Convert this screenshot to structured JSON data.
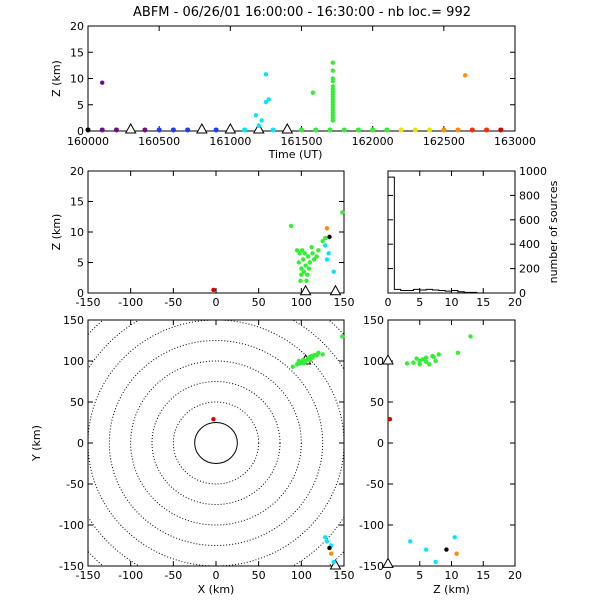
{
  "title": "ABFM - 06/26/01 16:00:00 - 16:30:00 - nb loc.=     992",
  "colors": {
    "black": "#000000",
    "purple": "#6a0f8c",
    "blue": "#1e3cff",
    "cyan": "#00e6ff",
    "green": "#33ee33",
    "yellow": "#e6e600",
    "orange": "#ff8c00",
    "red": "#ff2a00",
    "darkred": "#d40000"
  },
  "chart_data": [
    {
      "id": "time",
      "type": "scatter",
      "xlabel": "Time (UT)",
      "ylabel": "Z (km)",
      "xlim": [
        160000,
        163000
      ],
      "ylim": [
        0,
        20
      ],
      "xticks": [
        160000,
        160500,
        161000,
        161500,
        162000,
        162500,
        163000
      ],
      "yticks": [
        0,
        5,
        10,
        15,
        20
      ],
      "baseline_markers": {
        "t": [
          160000,
          160100,
          160200,
          160300,
          160400,
          160500,
          160600,
          160700,
          160800,
          160900,
          161000,
          161100,
          161200,
          161300,
          161400,
          161500,
          161600,
          161700,
          161800,
          161900,
          162000,
          162100,
          162200,
          162300,
          162400,
          162500,
          162600,
          162700,
          162800,
          162900
        ],
        "colors": [
          "black",
          "purple",
          "purple",
          "purple",
          "purple",
          "blue",
          "blue",
          "blue",
          "blue",
          "blue",
          "cyan",
          "cyan",
          "cyan",
          "cyan",
          "cyan",
          "green",
          "green",
          "green",
          "green",
          "green",
          "green",
          "green",
          "yellow",
          "yellow",
          "yellow",
          "orange",
          "orange",
          "red",
          "red",
          "darkred"
        ]
      },
      "stations": [
        160300,
        160800,
        161000,
        161200,
        161400
      ],
      "series": [
        {
          "color": "purple",
          "points": [
            [
              160100,
              9.2
            ]
          ]
        },
        {
          "color": "cyan",
          "points": [
            [
              161250,
              10.8
            ],
            [
              161270,
              6
            ],
            [
              161250,
              5.5
            ],
            [
              161220,
              2
            ],
            [
              161200,
              1
            ],
            [
              161180,
              3
            ]
          ]
        },
        {
          "color": "green",
          "points": [
            [
              161580,
              7.3
            ],
            [
              161720,
              13
            ],
            [
              161720,
              11.5
            ],
            [
              161720,
              10
            ],
            [
              161720,
              9.5
            ],
            [
              161720,
              8.5
            ],
            [
              161720,
              8
            ],
            [
              161720,
              7.5
            ],
            [
              161720,
              7
            ],
            [
              161720,
              6.5
            ],
            [
              161720,
              6
            ],
            [
              161720,
              5.5
            ],
            [
              161720,
              5
            ],
            [
              161720,
              4.5
            ],
            [
              161720,
              4
            ],
            [
              161720,
              3.5
            ],
            [
              161720,
              3
            ],
            [
              161720,
              2.5
            ],
            [
              161720,
              2
            ]
          ]
        },
        {
          "color": "orange",
          "points": [
            [
              162650,
              10.6
            ]
          ]
        }
      ]
    },
    {
      "id": "xz",
      "type": "scatter",
      "ylabel": "Z (km)",
      "xlim": [
        -150,
        150
      ],
      "ylim": [
        0,
        20
      ],
      "xticks": [
        -150,
        -100,
        -50,
        0,
        50,
        100,
        150
      ],
      "yticks": [
        0,
        5,
        10,
        15,
        20
      ],
      "stations": [
        105,
        140
      ],
      "series": [
        {
          "color": "darkred",
          "points": [
            [
              -3,
              0.5
            ]
          ]
        },
        {
          "color": "green",
          "points": [
            [
              88,
              11
            ],
            [
              95,
              7
            ],
            [
              97,
              5
            ],
            [
              98,
              6.5
            ],
            [
              100,
              4
            ],
            [
              100,
              3
            ],
            [
              102,
              5.5
            ],
            [
              104,
              6.5
            ],
            [
              105,
              4.5
            ],
            [
              106,
              2
            ],
            [
              108,
              6
            ],
            [
              110,
              5
            ],
            [
              112,
              7.5
            ],
            [
              115,
              5.5
            ],
            [
              118,
              6
            ],
            [
              120,
              7
            ],
            [
              125,
              8.5
            ],
            [
              128,
              9
            ],
            [
              148,
              13.2
            ],
            [
              99,
              2
            ],
            [
              101,
              7
            ],
            [
              103,
              3.5
            ],
            [
              107,
              3
            ],
            [
              109,
              4
            ],
            [
              113,
              6.5
            ]
          ]
        },
        {
          "color": "cyan",
          "points": [
            [
              128,
              7.8
            ],
            [
              130,
              5.5
            ],
            [
              132,
              6.5
            ],
            [
              138,
              3.5
            ]
          ]
        },
        {
          "color": "black",
          "points": [
            [
              133,
              9.2
            ]
          ]
        },
        {
          "color": "orange",
          "points": [
            [
              130,
              10.6
            ]
          ]
        }
      ]
    },
    {
      "id": "histogram",
      "type": "bar",
      "ylabel": "number of sources",
      "xlim": [
        0,
        20
      ],
      "ylim": [
        0,
        1000
      ],
      "xticks": [
        0,
        5,
        10,
        15,
        20
      ],
      "yticks": [
        0,
        200,
        400,
        600,
        800,
        1000
      ],
      "categories": [
        0.5,
        1.5,
        2.5,
        3.5,
        4.5,
        5.5,
        6.5,
        7.5,
        8.5,
        9.5,
        10.5,
        11.5,
        12.5,
        13.5
      ],
      "values": [
        950,
        30,
        20,
        20,
        30,
        25,
        30,
        25,
        20,
        15,
        20,
        10,
        5,
        5
      ]
    },
    {
      "id": "xy",
      "type": "scatter",
      "xlabel": "X (km)",
      "ylabel": "Y (km)",
      "xlim": [
        -150,
        150
      ],
      "ylim": [
        -150,
        150
      ],
      "xticks": [
        -150,
        -100,
        -50,
        0,
        50,
        100,
        150
      ],
      "yticks": [
        -150,
        -100,
        -50,
        0,
        50,
        100,
        150
      ],
      "range_rings": [
        25,
        50,
        75,
        100,
        125,
        150,
        175,
        200
      ],
      "stations": [
        [
          105,
          100
        ],
        [
          140,
          -150
        ]
      ],
      "series": [
        {
          "color": "darkred",
          "points": [
            [
              -3,
              29
            ]
          ]
        },
        {
          "color": "green",
          "points": [
            [
              90,
              93
            ],
            [
              95,
              96
            ],
            [
              98,
              97
            ],
            [
              100,
              98
            ],
            [
              102,
              101
            ],
            [
              105,
              100
            ],
            [
              108,
              103
            ],
            [
              110,
              105
            ],
            [
              112,
              106
            ],
            [
              115,
              107
            ],
            [
              118,
              107
            ],
            [
              120,
              110
            ],
            [
              125,
              108
            ],
            [
              148,
              130
            ],
            [
              97,
              100
            ],
            [
              103,
              97
            ],
            [
              110,
              101
            ],
            [
              113,
              104
            ]
          ]
        },
        {
          "color": "cyan",
          "points": [
            [
              128,
              -115
            ],
            [
              130,
              -120
            ],
            [
              135,
              -125
            ],
            [
              138,
              -145
            ]
          ]
        },
        {
          "color": "black",
          "points": [
            [
              133,
              -128
            ]
          ]
        },
        {
          "color": "orange",
          "points": [
            [
              135,
              -135
            ]
          ]
        }
      ]
    },
    {
      "id": "zy",
      "type": "scatter",
      "xlabel": "Z (km)",
      "xlim": [
        0,
        20
      ],
      "ylim": [
        -150,
        150
      ],
      "xticks": [
        0,
        5,
        10,
        15,
        20
      ],
      "yticks": [
        -150,
        -100,
        -50,
        0,
        50,
        100,
        150
      ],
      "stations": [
        [
          0,
          100
        ],
        [
          0,
          -148
        ]
      ],
      "series": [
        {
          "color": "darkred",
          "points": [
            [
              0.3,
              29
            ]
          ]
        },
        {
          "color": "green",
          "points": [
            [
              3,
              97
            ],
            [
              4,
              98
            ],
            [
              5,
              100
            ],
            [
              5.5,
              102
            ],
            [
              6,
              104
            ],
            [
              6.5,
              96
            ],
            [
              7,
              106
            ],
            [
              7.5,
              100
            ],
            [
              8,
              108
            ],
            [
              4.5,
              103
            ],
            [
              6,
              99
            ],
            [
              11,
              110
            ],
            [
              13,
              130
            ],
            [
              5,
              96
            ],
            [
              7.2,
              105
            ]
          ]
        },
        {
          "color": "cyan",
          "points": [
            [
              3.5,
              -120
            ],
            [
              6,
              -130
            ],
            [
              10.5,
              -115
            ],
            [
              7.5,
              -145
            ]
          ]
        },
        {
          "color": "black",
          "points": [
            [
              9.2,
              -130
            ]
          ]
        },
        {
          "color": "orange",
          "points": [
            [
              10.8,
              -135
            ]
          ]
        }
      ]
    }
  ]
}
